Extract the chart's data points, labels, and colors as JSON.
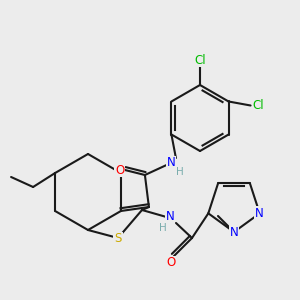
{
  "bg_color": "#ececec",
  "bond_color": "#1a1a1a",
  "atom_colors": {
    "O": "#ff0000",
    "N": "#0000ff",
    "S": "#ccaa00",
    "Cl": "#00bb00",
    "C": "#1a1a1a",
    "H": "#7aadad"
  },
  "figsize": [
    3.0,
    3.0
  ],
  "dpi": 100
}
